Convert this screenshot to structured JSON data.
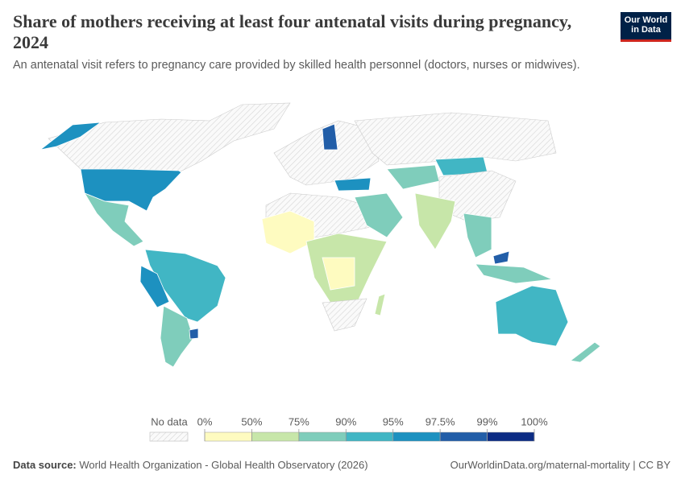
{
  "header": {
    "title": "Share of mothers receiving at least four antenatal visits during pregnancy, 2024",
    "subtitle": "An antenatal visit refers to pregnancy care provided by skilled health personnel (doctors, nurses or midwives).",
    "logo": [
      "Our World",
      "in Data"
    ]
  },
  "legend": {
    "no_data_label": "No data",
    "ticks": [
      {
        "value": 0,
        "label": "0%"
      },
      {
        "value": 50,
        "label": "50%"
      },
      {
        "value": 75,
        "label": "75%"
      },
      {
        "value": 90,
        "label": "90%"
      },
      {
        "value": 95,
        "label": "95%"
      },
      {
        "value": 97.5,
        "label": "97.5%"
      },
      {
        "value": 99,
        "label": "99%"
      },
      {
        "value": 100,
        "label": "100%"
      }
    ],
    "colors": [
      "#fefbc0",
      "#c7e6a9",
      "#7fcdbb",
      "#41b6c4",
      "#1d91c0",
      "#225ea8",
      "#0c2c84"
    ]
  },
  "footer": {
    "source_label": "Data source:",
    "source": "World Health Organization - Global Health Observatory (2026)",
    "url": "OurWorldinData.org/maternal-mortality | CC BY"
  }
}
